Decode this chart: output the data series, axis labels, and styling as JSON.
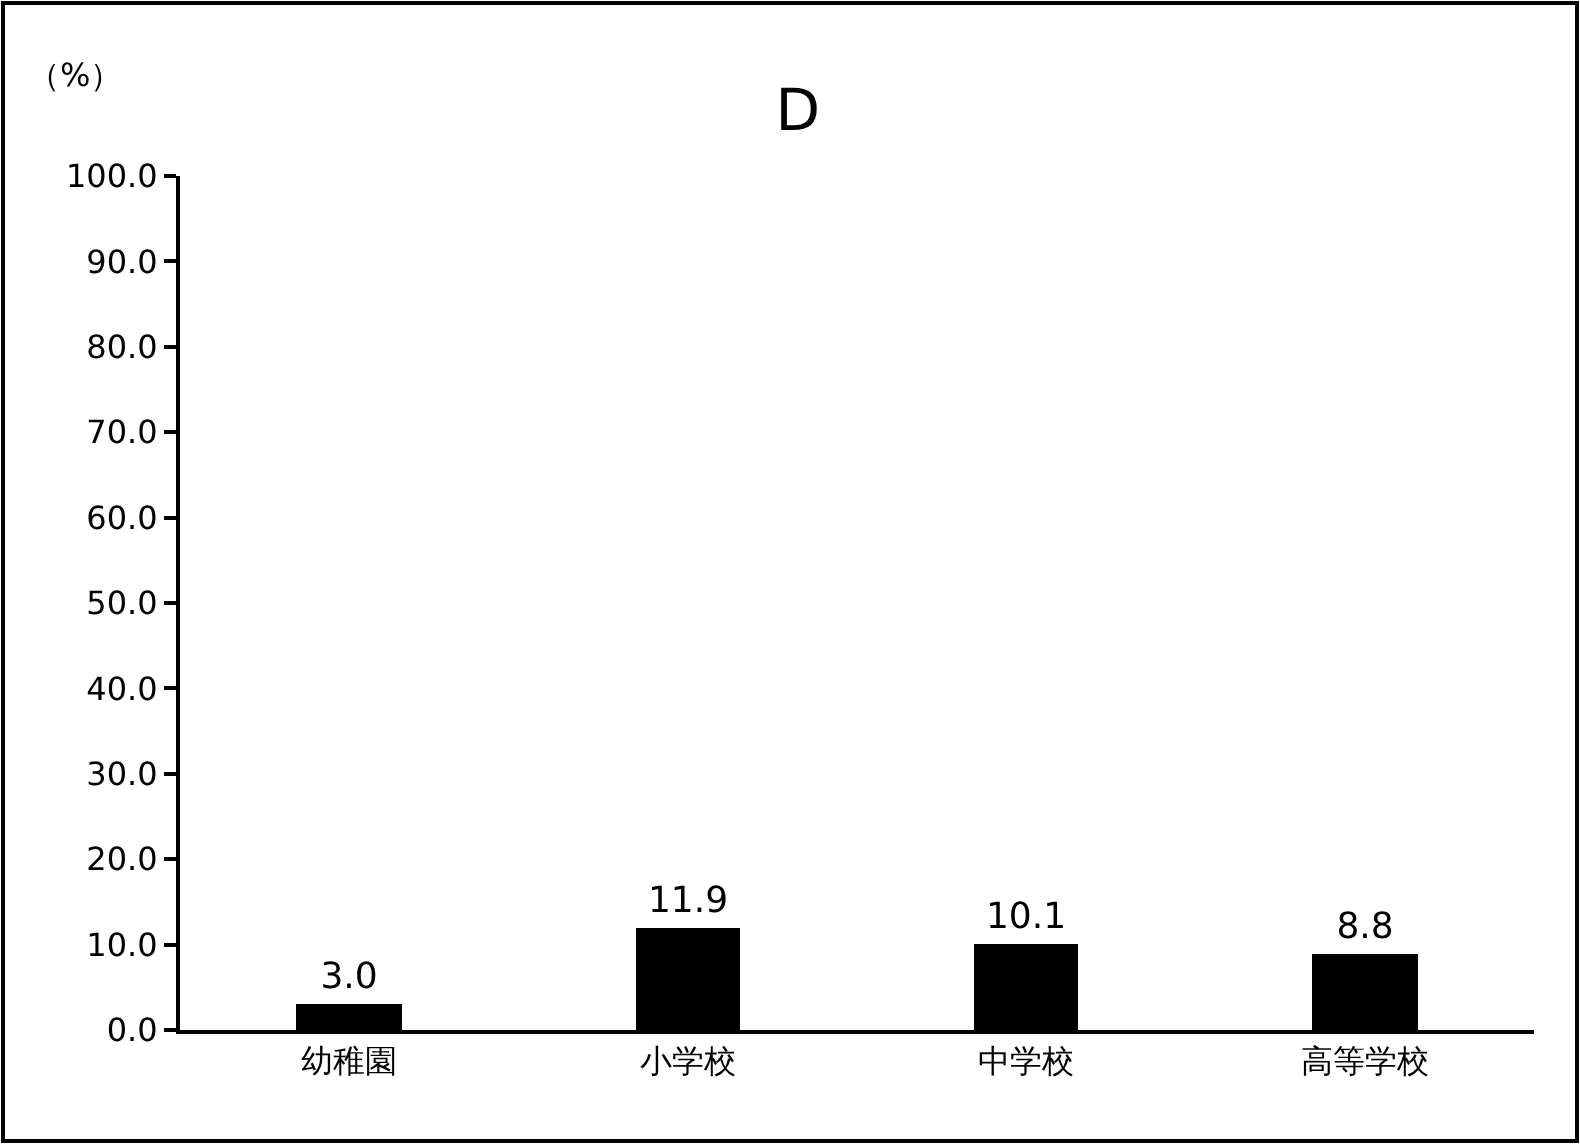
{
  "chart_data": {
    "type": "bar",
    "title": "D",
    "ylabel": "（%）",
    "categories": [
      "幼稚園",
      "小学校",
      "中学校",
      "高等学校"
    ],
    "values": [
      3.0,
      11.9,
      10.1,
      8.8
    ],
    "color": "#000000",
    "value_labels": [
      "3.0",
      "11.9",
      "10.1",
      "8.8"
    ],
    "ylim": [
      0,
      100
    ],
    "yticks": [
      {
        "value": 0,
        "label": "0.0"
      },
      {
        "value": 10,
        "label": "10.0"
      },
      {
        "value": 20,
        "label": "20.0"
      },
      {
        "value": 30,
        "label": "30.0"
      },
      {
        "value": 40,
        "label": "40.0"
      },
      {
        "value": 50,
        "label": "50.0"
      },
      {
        "value": 60,
        "label": "60.0"
      },
      {
        "value": 70,
        "label": "70.0"
      },
      {
        "value": 80,
        "label": "80.0"
      },
      {
        "value": 90,
        "label": "90.0"
      },
      {
        "value": 100,
        "label": "100.0"
      }
    ],
    "grid": false,
    "legend": false
  }
}
